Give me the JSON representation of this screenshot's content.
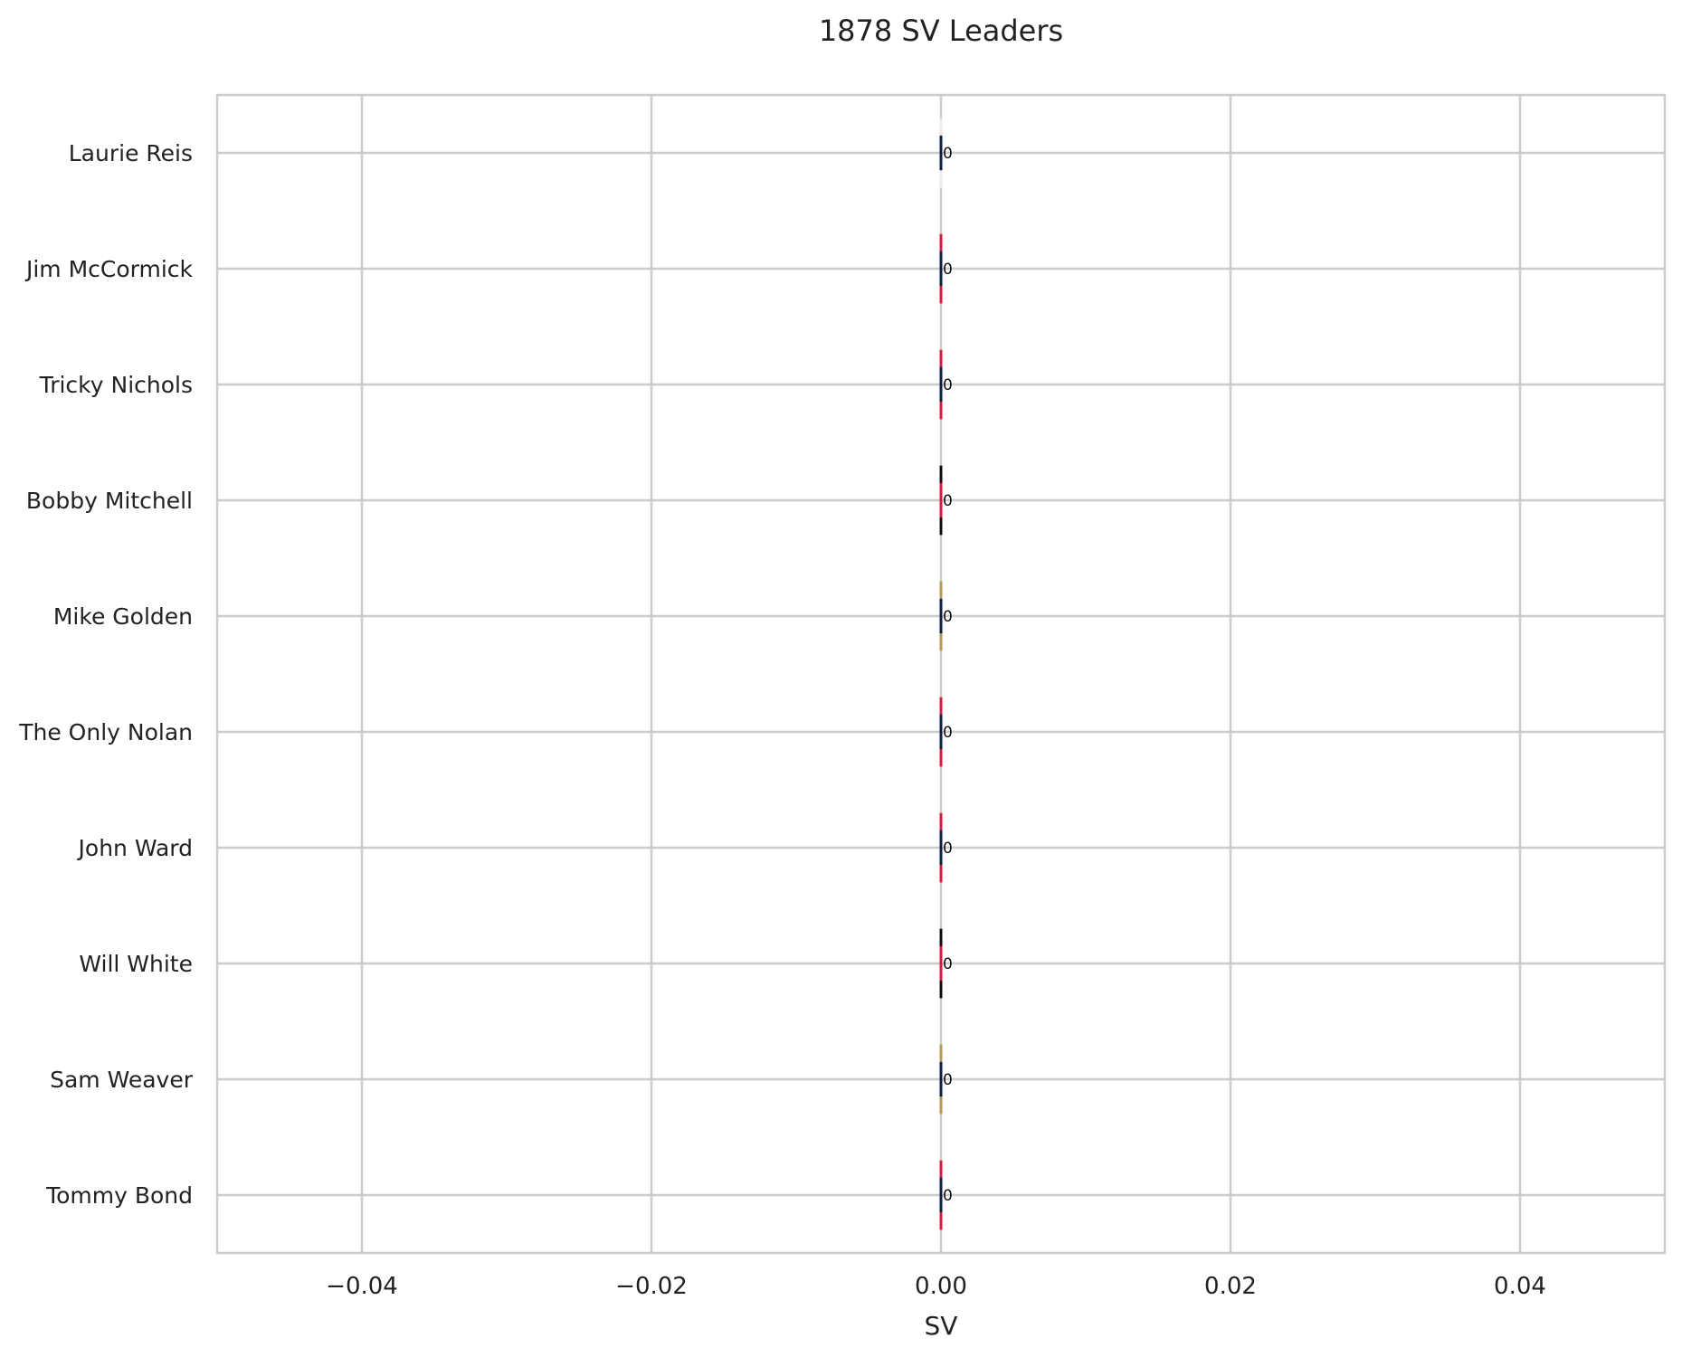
{
  "chart_data": {
    "type": "bar",
    "orientation": "horizontal",
    "title": "1878 SV Leaders",
    "xlabel": "SV",
    "ylabel": "",
    "xlim": [
      -0.05,
      0.05
    ],
    "xticks": [
      -0.04,
      -0.02,
      0.0,
      0.02,
      0.04
    ],
    "xtick_labels": [
      "−0.04",
      "−0.02",
      "0.00",
      "0.02",
      "0.04"
    ],
    "grid": true,
    "categories": [
      "Laurie Reis",
      "Jim McCormick",
      "Tricky Nichols",
      "Bobby Mitchell",
      "Mike Golden",
      "The Only Nolan",
      "John Ward",
      "Will White",
      "Sam Weaver",
      "Tommy Bond"
    ],
    "values": [
      0,
      0,
      0,
      0,
      0,
      0,
      0,
      0,
      0,
      0
    ],
    "data_labels": [
      "0",
      "0",
      "0",
      "0",
      "0",
      "0",
      "0",
      "0",
      "0",
      "0"
    ],
    "bar_colors": [
      {
        "outer": "#f3e9e9",
        "inner": "#0c2340"
      },
      {
        "outer": "#d61a46",
        "inner": "#0c2340"
      },
      {
        "outer": "#d61a46",
        "inner": "#0c2340"
      },
      {
        "outer": "#111111",
        "inner": "#d61a46"
      },
      {
        "outer": "#b99a57",
        "inner": "#0c2340"
      },
      {
        "outer": "#d61a46",
        "inner": "#0c2340"
      },
      {
        "outer": "#d61a46",
        "inner": "#0c2340"
      },
      {
        "outer": "#111111",
        "inner": "#d61a46"
      },
      {
        "outer": "#b99a57",
        "inner": "#0c2340"
      },
      {
        "outer": "#d61a46",
        "inner": "#0c2340"
      }
    ],
    "colors": {
      "grid": "#cccccc",
      "spine": "#cccccc",
      "text": "#222222",
      "label": "#111111"
    }
  }
}
